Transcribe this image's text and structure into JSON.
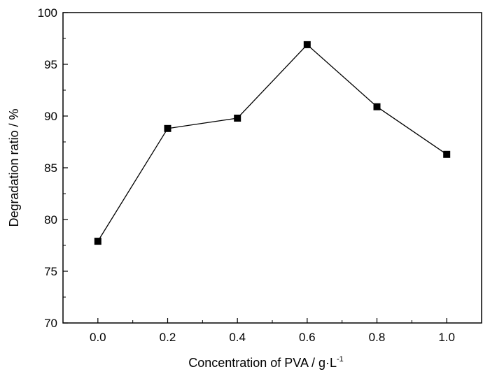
{
  "chart_data": {
    "type": "line",
    "title": "",
    "xlabel": "Concentration of PVA / g·L",
    "xlabel_superscript": "-1",
    "ylabel": "Degradation ratio / %",
    "xlim": [
      -0.1,
      1.1
    ],
    "ylim": [
      70,
      100
    ],
    "x_ticks": [
      "0.0",
      "0.2",
      "0.4",
      "0.6",
      "0.8",
      "1.0"
    ],
    "y_ticks": [
      "70",
      "75",
      "80",
      "85",
      "90",
      "95",
      "100"
    ],
    "x": [
      0.0,
      0.2,
      0.4,
      0.6,
      0.8,
      1.0
    ],
    "series": [
      {
        "values": [
          77.9,
          88.8,
          89.8,
          96.9,
          90.9,
          86.3
        ],
        "marker": "square",
        "color": "#000000"
      }
    ],
    "grid": false,
    "legend": "none"
  }
}
